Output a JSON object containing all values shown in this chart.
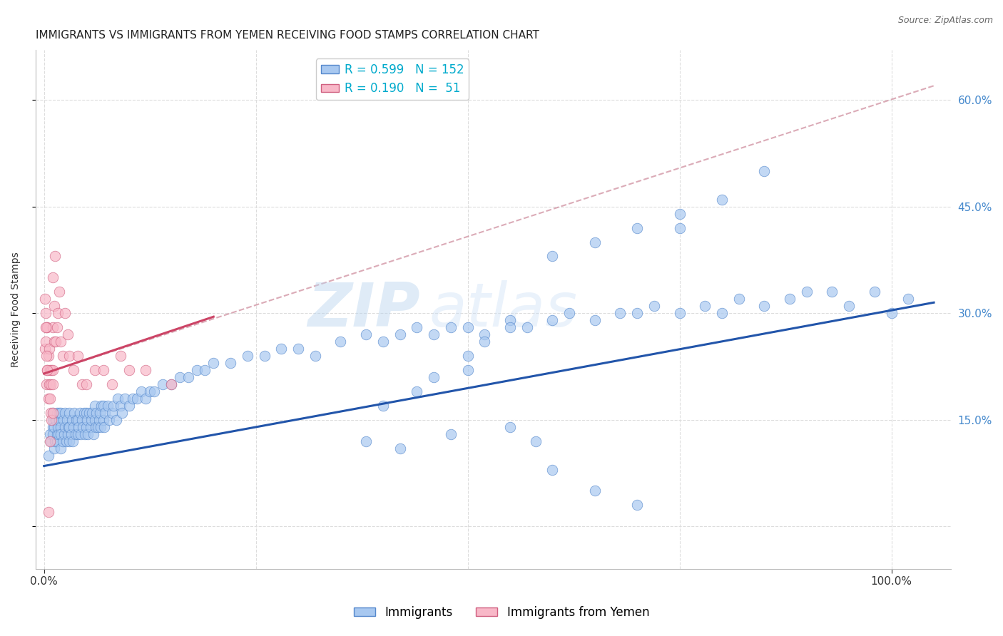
{
  "title": "IMMIGRANTS VS IMMIGRANTS FROM YEMEN RECEIVING FOOD STAMPS CORRELATION CHART",
  "source": "Source: ZipAtlas.com",
  "ylabel": "Receiving Food Stamps",
  "watermark_zip": "ZIP",
  "watermark_atlas": "atlas",
  "legend": [
    {
      "label": "Immigrants",
      "R": 0.599,
      "N": 152,
      "color": "#a8c8f0",
      "edge": "#5588cc"
    },
    {
      "label": "Immigrants from Yemen",
      "R": 0.19,
      "N": 51,
      "color": "#f8b8c8",
      "edge": "#d06080"
    }
  ],
  "blue_line_color": "#2255aa",
  "pink_line_color": "#cc4466",
  "pink_dash_color": "#cc8899",
  "right_tick_color": "#4488cc",
  "yticks": [
    0.0,
    0.15,
    0.3,
    0.45,
    0.6
  ],
  "xlim": [
    -0.01,
    1.07
  ],
  "ylim": [
    -0.06,
    0.67
  ],
  "blue_line": {
    "x0": 0.0,
    "y0": 0.085,
    "x1": 1.05,
    "y1": 0.315
  },
  "pink_line_solid": {
    "x0": 0.0,
    "y0": 0.215,
    "x1": 0.2,
    "y1": 0.295
  },
  "pink_line_dash": {
    "x0": 0.0,
    "y0": 0.215,
    "x1": 1.05,
    "y1": 0.62
  },
  "background_color": "#ffffff",
  "grid_color": "#dddddd",
  "title_fontsize": 11,
  "label_fontsize": 10,
  "tick_fontsize": 11,
  "blue_scatter_x": [
    0.005,
    0.007,
    0.008,
    0.01,
    0.01,
    0.01,
    0.01,
    0.012,
    0.012,
    0.013,
    0.014,
    0.015,
    0.015,
    0.015,
    0.016,
    0.017,
    0.018,
    0.018,
    0.02,
    0.02,
    0.02,
    0.02,
    0.022,
    0.023,
    0.024,
    0.025,
    0.025,
    0.026,
    0.027,
    0.028,
    0.029,
    0.03,
    0.03,
    0.03,
    0.032,
    0.033,
    0.034,
    0.035,
    0.036,
    0.037,
    0.038,
    0.04,
    0.04,
    0.041,
    0.042,
    0.043,
    0.045,
    0.046,
    0.047,
    0.048,
    0.05,
    0.05,
    0.051,
    0.052,
    0.053,
    0.055,
    0.056,
    0.057,
    0.058,
    0.06,
    0.06,
    0.061,
    0.062,
    0.063,
    0.065,
    0.066,
    0.067,
    0.068,
    0.07,
    0.07,
    0.071,
    0.072,
    0.075,
    0.077,
    0.08,
    0.082,
    0.085,
    0.087,
    0.09,
    0.092,
    0.095,
    0.1,
    0.105,
    0.11,
    0.115,
    0.12,
    0.125,
    0.13,
    0.14,
    0.15,
    0.16,
    0.17,
    0.18,
    0.19,
    0.2,
    0.22,
    0.24,
    0.26,
    0.28,
    0.3,
    0.32,
    0.35,
    0.38,
    0.4,
    0.42,
    0.44,
    0.46,
    0.48,
    0.5,
    0.52,
    0.55,
    0.57,
    0.6,
    0.62,
    0.65,
    0.68,
    0.7,
    0.72,
    0.75,
    0.78,
    0.8,
    0.82,
    0.85,
    0.88,
    0.9,
    0.93,
    0.95,
    0.98,
    1.0,
    1.02,
    0.48,
    0.5,
    0.38,
    0.42,
    0.55,
    0.58,
    0.6,
    0.65,
    0.7,
    0.75,
    0.8,
    0.85,
    0.5,
    0.52,
    0.55,
    0.6,
    0.65,
    0.7,
    0.75,
    0.4,
    0.44,
    0.46
  ],
  "blue_scatter_y": [
    0.1,
    0.13,
    0.12,
    0.14,
    0.16,
    0.13,
    0.15,
    0.11,
    0.14,
    0.12,
    0.15,
    0.13,
    0.16,
    0.12,
    0.14,
    0.13,
    0.15,
    0.16,
    0.11,
    0.14,
    0.16,
    0.13,
    0.12,
    0.15,
    0.13,
    0.14,
    0.16,
    0.12,
    0.15,
    0.13,
    0.14,
    0.12,
    0.14,
    0.16,
    0.13,
    0.15,
    0.12,
    0.14,
    0.16,
    0.13,
    0.15,
    0.13,
    0.15,
    0.14,
    0.16,
    0.13,
    0.15,
    0.14,
    0.16,
    0.13,
    0.14,
    0.16,
    0.15,
    0.13,
    0.16,
    0.14,
    0.15,
    0.16,
    0.13,
    0.15,
    0.17,
    0.14,
    0.16,
    0.14,
    0.15,
    0.16,
    0.14,
    0.17,
    0.15,
    0.17,
    0.14,
    0.16,
    0.17,
    0.15,
    0.16,
    0.17,
    0.15,
    0.18,
    0.17,
    0.16,
    0.18,
    0.17,
    0.18,
    0.18,
    0.19,
    0.18,
    0.19,
    0.19,
    0.2,
    0.2,
    0.21,
    0.21,
    0.22,
    0.22,
    0.23,
    0.23,
    0.24,
    0.24,
    0.25,
    0.25,
    0.24,
    0.26,
    0.27,
    0.26,
    0.27,
    0.28,
    0.27,
    0.28,
    0.28,
    0.27,
    0.29,
    0.28,
    0.29,
    0.3,
    0.29,
    0.3,
    0.3,
    0.31,
    0.3,
    0.31,
    0.3,
    0.32,
    0.31,
    0.32,
    0.33,
    0.33,
    0.31,
    0.33,
    0.3,
    0.32,
    0.13,
    0.22,
    0.12,
    0.11,
    0.14,
    0.12,
    0.08,
    0.05,
    0.03,
    0.42,
    0.46,
    0.5,
    0.24,
    0.26,
    0.28,
    0.38,
    0.4,
    0.42,
    0.44,
    0.17,
    0.19,
    0.21
  ],
  "pink_scatter_x": [
    0.001,
    0.001,
    0.002,
    0.002,
    0.003,
    0.003,
    0.004,
    0.004,
    0.005,
    0.005,
    0.006,
    0.006,
    0.007,
    0.007,
    0.008,
    0.008,
    0.009,
    0.009,
    0.01,
    0.01,
    0.01,
    0.012,
    0.012,
    0.013,
    0.014,
    0.015,
    0.016,
    0.018,
    0.02,
    0.022,
    0.025,
    0.028,
    0.03,
    0.035,
    0.04,
    0.045,
    0.05,
    0.06,
    0.07,
    0.08,
    0.09,
    0.1,
    0.12,
    0.15,
    0.01,
    0.01,
    0.005,
    0.007,
    0.003,
    0.004,
    0.002
  ],
  "pink_scatter_y": [
    0.25,
    0.32,
    0.26,
    0.3,
    0.2,
    0.28,
    0.22,
    0.28,
    0.18,
    0.24,
    0.2,
    0.25,
    0.18,
    0.22,
    0.16,
    0.2,
    0.15,
    0.22,
    0.22,
    0.28,
    0.35,
    0.26,
    0.31,
    0.38,
    0.26,
    0.28,
    0.3,
    0.33,
    0.26,
    0.24,
    0.3,
    0.27,
    0.24,
    0.22,
    0.24,
    0.2,
    0.2,
    0.22,
    0.22,
    0.2,
    0.24,
    0.22,
    0.22,
    0.2,
    0.2,
    0.16,
    0.02,
    0.12,
    0.24,
    0.22,
    0.28
  ]
}
